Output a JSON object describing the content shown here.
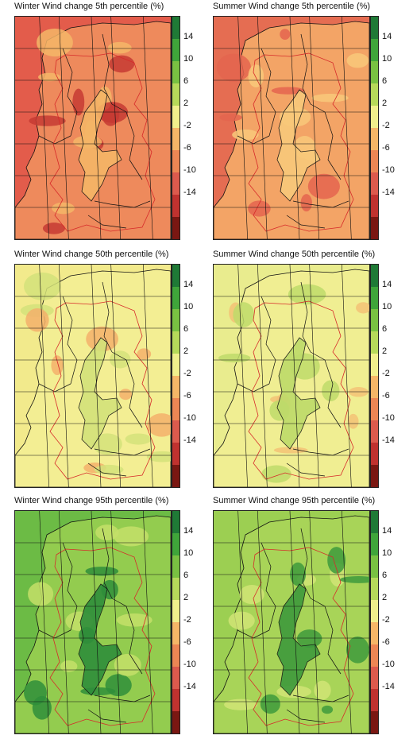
{
  "colorbar": {
    "labels": [
      "14",
      "10",
      "6",
      "2",
      "-2",
      "-6",
      "-10",
      "-14"
    ],
    "colors": [
      "#1f7a36",
      "#3fa53a",
      "#79c142",
      "#b6d95a",
      "#f0ef8c",
      "#f5b667",
      "#ec8654",
      "#dc5a4d",
      "#c0322f",
      "#7a1712"
    ]
  },
  "panels": [
    {
      "title": "Winter Wind change 5th percentile (%)",
      "theme": "red",
      "palette": {
        "sea": "#e35c4b",
        "land": "#ee8a5c",
        "patchA": "#f5b667",
        "patchB": "#c53a33"
      }
    },
    {
      "title": "Summer Wind change 5th percentile (%)",
      "theme": "orange",
      "palette": {
        "sea": "#e56d52",
        "land": "#f3a466",
        "patchA": "#f8c97a",
        "patchB": "#e4654f"
      }
    },
    {
      "title": "Winter Wind change 50th percentile (%)",
      "theme": "yellow",
      "palette": {
        "sea": "#f2ea8c",
        "land": "#f3ee93",
        "patchA": "#d3e27a",
        "patchB": "#f3b06b"
      }
    },
    {
      "title": "Summer Wind change 50th percentile (%)",
      "theme": "yellow-green",
      "palette": {
        "sea": "#e9ec8e",
        "land": "#f0ee92",
        "patchA": "#bedb6a",
        "patchB": "#f3c275"
      }
    },
    {
      "title": "Winter Wind change 95th percentile (%)",
      "theme": "green",
      "palette": {
        "sea": "#6cbb45",
        "land": "#93cc4f",
        "patchA": "#2f8e3a",
        "patchB": "#c4df68"
      }
    },
    {
      "title": "Summer Wind change 95th percentile (%)",
      "theme": "green-light",
      "palette": {
        "sea": "#9ccf52",
        "land": "#a8d458",
        "patchA": "#3e9a3c",
        "patchB": "#d1e475"
      }
    }
  ]
}
